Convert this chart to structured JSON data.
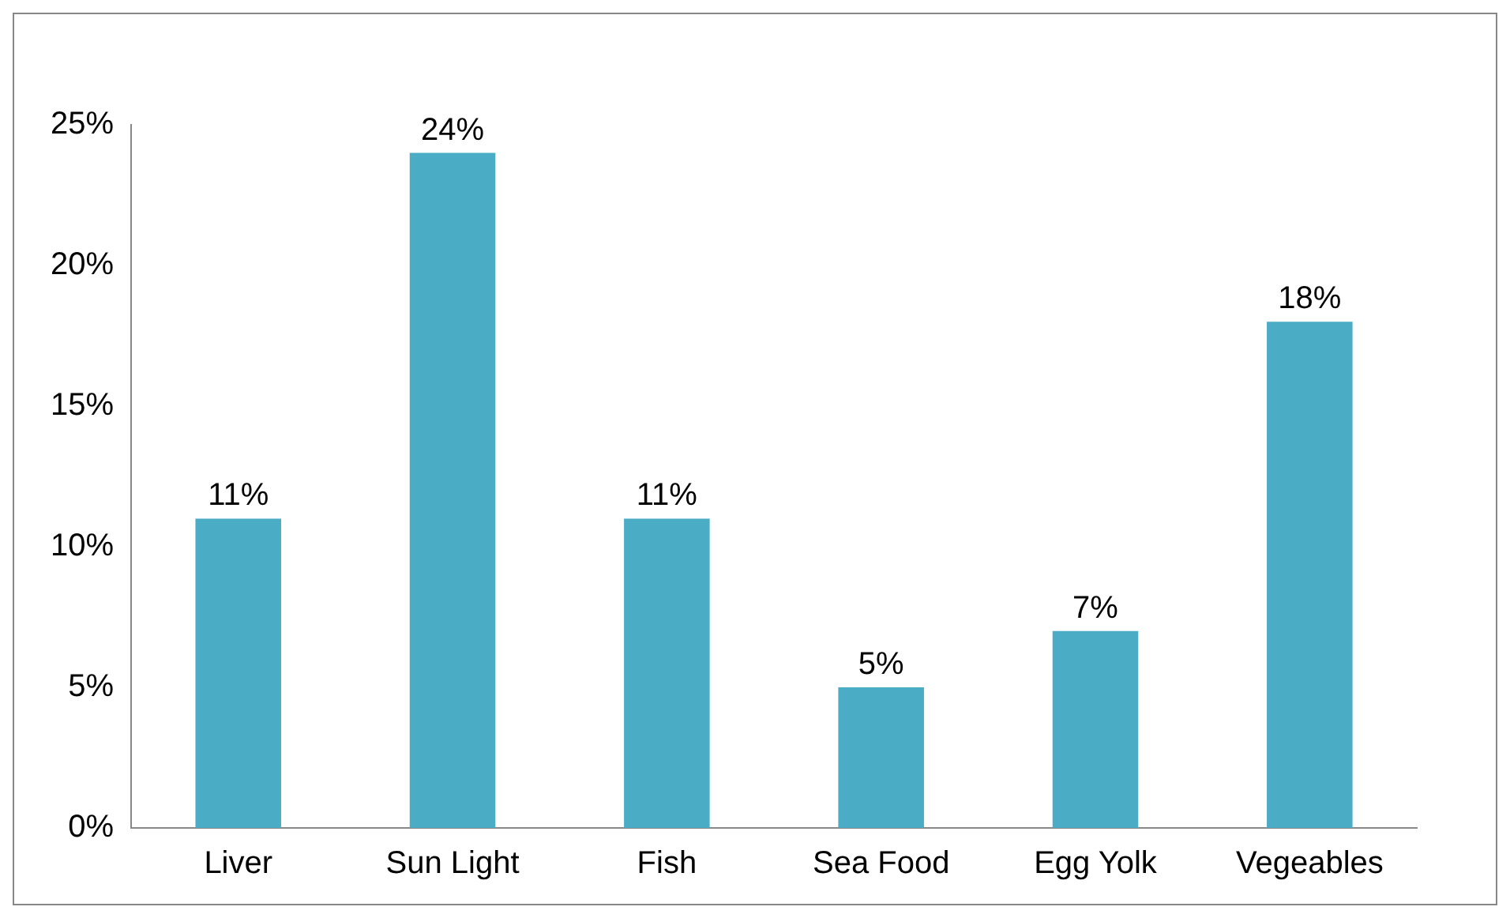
{
  "chart_data": {
    "type": "bar",
    "categories": [
      "Liver",
      "Sun Light",
      "Fish",
      "Sea Food",
      "Egg Yolk",
      "Vegeables"
    ],
    "values": [
      11,
      24,
      11,
      5,
      7,
      18
    ],
    "value_labels": [
      "11%",
      "24%",
      "11%",
      "5%",
      "7%",
      "18%"
    ],
    "color": "#4bacc6",
    "ylim": [
      0,
      25
    ],
    "yticks": [
      {
        "value": 0,
        "label": "0%"
      },
      {
        "value": 5,
        "label": "5%"
      },
      {
        "value": 10,
        "label": "10%"
      },
      {
        "value": 15,
        "label": "15%"
      },
      {
        "value": 20,
        "label": "20%"
      },
      {
        "value": 25,
        "label": "25%"
      }
    ],
    "grid": false,
    "legend": false
  }
}
